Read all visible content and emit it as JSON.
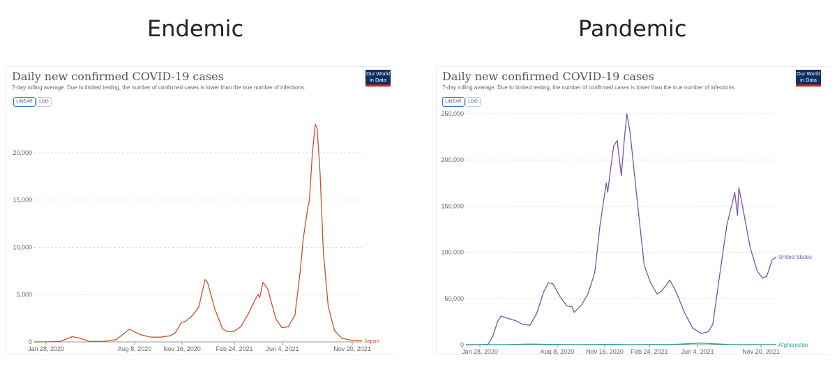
{
  "headings": {
    "left": "Endemic",
    "right": "Pandemic"
  },
  "chart_data": [
    {
      "type": "line",
      "title": "Daily new confirmed COVID-19 cases",
      "subtitle": "7-day rolling average. Due to limited testing, the number of confirmed cases is lower than the true number of infections.",
      "logo_text": [
        "Our World",
        "in Data"
      ],
      "scale_options": [
        "LINEAR",
        "LOG"
      ],
      "selected_scale": "LINEAR",
      "x_ticks": [
        "Jan 28, 2020",
        "Aug 8, 2020",
        "Nov 16, 2020",
        "Feb 24, 2021",
        "Jun 4, 2021",
        "Nov 20, 2021"
      ],
      "y_ticks": [
        0,
        5000,
        10000,
        15000,
        20000
      ],
      "y_tick_labels": [
        "0",
        "5,000",
        "10,000",
        "15,000",
        "20,000"
      ],
      "ylim": [
        0,
        24500
      ],
      "xlim": [
        "2020-01-22",
        "2021-12-01"
      ],
      "grid": true,
      "series": [
        {
          "name": "Japan",
          "color": "#c9502e",
          "points": [
            [
              "2020-01-22",
              0
            ],
            [
              "2020-02-20",
              5
            ],
            [
              "2020-03-15",
              40
            ],
            [
              "2020-04-10",
              550
            ],
            [
              "2020-04-25",
              400
            ],
            [
              "2020-05-15",
              50
            ],
            [
              "2020-06-15",
              50
            ],
            [
              "2020-07-10",
              250
            ],
            [
              "2020-07-25",
              850
            ],
            [
              "2020-08-06",
              1350
            ],
            [
              "2020-08-15",
              1100
            ],
            [
              "2020-08-30",
              750
            ],
            [
              "2020-09-20",
              500
            ],
            [
              "2020-10-10",
              500
            ],
            [
              "2020-10-30",
              650
            ],
            [
              "2020-11-10",
              1000
            ],
            [
              "2020-11-22",
              2050
            ],
            [
              "2020-12-01",
              2200
            ],
            [
              "2020-12-15",
              2800
            ],
            [
              "2020-12-28",
              3700
            ],
            [
              "2021-01-05",
              5500
            ],
            [
              "2021-01-10",
              6600
            ],
            [
              "2021-01-15",
              6300
            ],
            [
              "2021-01-30",
              3500
            ],
            [
              "2021-02-15",
              1400
            ],
            [
              "2021-02-24",
              1100
            ],
            [
              "2021-03-10",
              1100
            ],
            [
              "2021-03-25",
              1600
            ],
            [
              "2021-04-10",
              3000
            ],
            [
              "2021-04-25",
              4600
            ],
            [
              "2021-04-30",
              5000
            ],
            [
              "2021-05-03",
              4700
            ],
            [
              "2021-05-10",
              6300
            ],
            [
              "2021-05-20",
              5600
            ],
            [
              "2021-06-05",
              2500
            ],
            [
              "2021-06-18",
              1500
            ],
            [
              "2021-07-01",
              1600
            ],
            [
              "2021-07-15",
              2800
            ],
            [
              "2021-07-26",
              7500
            ],
            [
              "2021-08-01",
              10800
            ],
            [
              "2021-08-10",
              14000
            ],
            [
              "2021-08-14",
              15000
            ],
            [
              "2021-08-20",
              19800
            ],
            [
              "2021-08-26",
              23000
            ],
            [
              "2021-08-30",
              22600
            ],
            [
              "2021-09-05",
              18000
            ],
            [
              "2021-09-12",
              9500
            ],
            [
              "2021-09-22",
              3800
            ],
            [
              "2021-10-05",
              1200
            ],
            [
              "2021-10-20",
              400
            ],
            [
              "2021-11-05",
              200
            ],
            [
              "2021-12-01",
              120
            ]
          ]
        }
      ]
    },
    {
      "type": "line",
      "title": "Daily new confirmed COVID-19 cases",
      "subtitle": "7-day rolling average. Due to limited testing, the number of confirmed cases is lower than the true number of infections.",
      "logo_text": [
        "Our World",
        "in Data"
      ],
      "scale_options": [
        "LINEAR",
        "LOG"
      ],
      "selected_scale": "LINEAR",
      "x_ticks": [
        "Jan 28, 2020",
        "Aug 8, 2020",
        "Nov 16, 2020",
        "Feb 24, 2021",
        "Jun 4, 2021",
        "Nov 20, 2021"
      ],
      "y_ticks": [
        0,
        50000,
        100000,
        150000,
        200000,
        250000
      ],
      "y_tick_labels": [
        "0",
        "50,000",
        "100,000",
        "150,000",
        "200,000",
        "250,000"
      ],
      "ylim": [
        0,
        250000
      ],
      "xlim": [
        "2020-01-22",
        "2021-12-01"
      ],
      "grid": true,
      "series": [
        {
          "name": "United States",
          "color": "#7a52a8",
          "points": [
            [
              "2020-01-22",
              0
            ],
            [
              "2020-02-25",
              0
            ],
            [
              "2020-03-10",
              400
            ],
            [
              "2020-03-20",
              8000
            ],
            [
              "2020-04-01",
              26000
            ],
            [
              "2020-04-08",
              31000
            ],
            [
              "2020-04-20",
              29000
            ],
            [
              "2020-05-10",
              26000
            ],
            [
              "2020-05-25",
              22000
            ],
            [
              "2020-06-10",
              21000
            ],
            [
              "2020-06-25",
              34000
            ],
            [
              "2020-07-10",
              57000
            ],
            [
              "2020-07-20",
              67000
            ],
            [
              "2020-07-30",
              66000
            ],
            [
              "2020-08-15",
              52000
            ],
            [
              "2020-08-30",
              42000
            ],
            [
              "2020-09-10",
              41000
            ],
            [
              "2020-09-15",
              35000
            ],
            [
              "2020-10-01",
              43000
            ],
            [
              "2020-10-15",
              55000
            ],
            [
              "2020-10-30",
              78000
            ],
            [
              "2020-11-10",
              128000
            ],
            [
              "2020-11-24",
              175000
            ],
            [
              "2020-11-27",
              165000
            ],
            [
              "2020-12-10",
              215000
            ],
            [
              "2020-12-18",
              221000
            ],
            [
              "2020-12-27",
              183000
            ],
            [
              "2021-01-02",
              220000
            ],
            [
              "2021-01-08",
              250000
            ],
            [
              "2021-01-15",
              230000
            ],
            [
              "2021-02-01",
              150000
            ],
            [
              "2021-02-15",
              86000
            ],
            [
              "2021-03-01",
              67000
            ],
            [
              "2021-03-15",
              55000
            ],
            [
              "2021-03-25",
              58000
            ],
            [
              "2021-04-05",
              65000
            ],
            [
              "2021-04-12",
              70000
            ],
            [
              "2021-04-25",
              58000
            ],
            [
              "2021-05-15",
              34000
            ],
            [
              "2021-06-01",
              18000
            ],
            [
              "2021-06-20",
              12000
            ],
            [
              "2021-07-05",
              14000
            ],
            [
              "2021-07-15",
              22000
            ],
            [
              "2021-07-30",
              75000
            ],
            [
              "2021-08-15",
              130000
            ],
            [
              "2021-08-25",
              150000
            ],
            [
              "2021-09-01",
              165000
            ],
            [
              "2021-09-07",
              140000
            ],
            [
              "2021-09-10",
              170000
            ],
            [
              "2021-09-18",
              150000
            ],
            [
              "2021-10-05",
              105000
            ],
            [
              "2021-10-20",
              80000
            ],
            [
              "2021-11-01",
              72000
            ],
            [
              "2021-11-10",
              74000
            ],
            [
              "2021-11-22",
              92000
            ],
            [
              "2021-12-01",
              95000
            ]
          ]
        },
        {
          "name": "Afghanistan",
          "color": "#2e9f95",
          "points": [
            [
              "2020-01-22",
              0
            ],
            [
              "2020-04-15",
              50
            ],
            [
              "2020-06-10",
              700
            ],
            [
              "2020-07-20",
              250
            ],
            [
              "2020-09-20",
              60
            ],
            [
              "2020-11-25",
              220
            ],
            [
              "2021-01-20",
              80
            ],
            [
              "2021-04-20",
              200
            ],
            [
              "2021-06-20",
              1700
            ],
            [
              "2021-07-15",
              1000
            ],
            [
              "2021-08-20",
              150
            ],
            [
              "2021-12-01",
              50
            ]
          ]
        }
      ]
    }
  ]
}
